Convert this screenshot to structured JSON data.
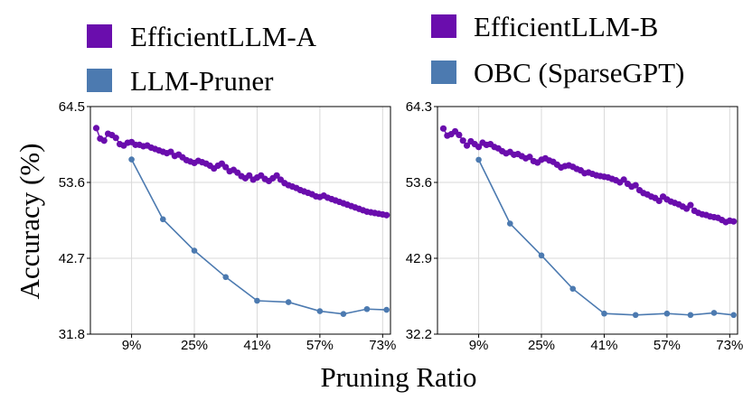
{
  "figure": {
    "ylabel": "Accuracy (%)",
    "xlabel": "Pruning Ratio"
  },
  "chart_data": [
    {
      "type": "line",
      "title": "",
      "legend": "top",
      "grid": true,
      "xticks": [
        "9%",
        "25%",
        "41%",
        "57%",
        "73%"
      ],
      "xtick_values": [
        9,
        25,
        41,
        57,
        73
      ],
      "xlim": [
        -1.5,
        75
      ],
      "ylim": [
        31.8,
        64.5
      ],
      "yticks": [
        "31.8",
        "42.7",
        "53.6",
        "64.5"
      ],
      "ytick_values": [
        31.8,
        42.7,
        53.6,
        64.5
      ],
      "series": [
        {
          "name": "EfficientLLM-A",
          "color": "#6a0dad",
          "x": [
            0,
            1,
            2,
            3,
            4,
            5,
            6,
            7,
            8,
            9,
            10,
            11,
            12,
            13,
            14,
            15,
            16,
            17,
            18,
            19,
            20,
            21,
            22,
            23,
            24,
            25,
            26,
            27,
            28,
            29,
            30,
            31,
            32,
            33,
            34,
            35,
            36,
            37,
            38,
            39,
            40,
            41,
            42,
            43,
            44,
            45,
            46,
            47,
            48,
            49,
            50,
            51,
            52,
            53,
            54,
            55,
            56,
            57,
            58,
            59,
            60,
            61,
            62,
            63,
            64,
            65,
            66,
            67,
            68,
            69,
            70,
            71,
            72,
            73,
            74
          ],
          "y": [
            61.4,
            59.9,
            59.6,
            60.6,
            60.4,
            60.0,
            59.1,
            58.9,
            59.3,
            59.4,
            59.0,
            59.0,
            58.8,
            58.9,
            58.6,
            58.4,
            58.2,
            58.0,
            57.8,
            58.0,
            57.4,
            57.6,
            57.2,
            56.8,
            56.6,
            56.4,
            56.7,
            56.5,
            56.3,
            56.0,
            55.6,
            56.0,
            56.3,
            55.8,
            55.2,
            55.4,
            55.0,
            54.5,
            54.2,
            54.6,
            54.0,
            54.3,
            54.6,
            54.1,
            53.8,
            54.2,
            54.6,
            54.0,
            53.5,
            53.2,
            53.0,
            52.8,
            52.5,
            52.3,
            52.1,
            51.9,
            51.6,
            51.5,
            51.7,
            51.4,
            51.2,
            51.0,
            50.8,
            50.6,
            50.4,
            50.2,
            50.0,
            49.8,
            49.6,
            49.4,
            49.3,
            49.2,
            49.1,
            49.0,
            48.9
          ]
        },
        {
          "name": "LLM-Pruner",
          "color": "#4c7ab0",
          "x": [
            9,
            17,
            25,
            33,
            41,
            49,
            57,
            63,
            69,
            74
          ],
          "y": [
            56.9,
            48.3,
            43.8,
            40.0,
            36.6,
            36.4,
            35.1,
            34.7,
            35.4,
            35.3
          ]
        }
      ]
    },
    {
      "type": "line",
      "title": "",
      "legend": "top",
      "grid": true,
      "xticks": [
        "9%",
        "25%",
        "41%",
        "57%",
        "73%"
      ],
      "xtick_values": [
        9,
        25,
        41,
        57,
        73
      ],
      "xlim": [
        -1.5,
        75
      ],
      "ylim": [
        32.2,
        64.3
      ],
      "yticks": [
        "32.2",
        "42.9",
        "53.6",
        "64.3"
      ],
      "ytick_values": [
        32.2,
        42.9,
        53.6,
        64.3
      ],
      "series": [
        {
          "name": "EfficientLLM-B",
          "color": "#6a0dad",
          "x": [
            0,
            1,
            2,
            3,
            4,
            5,
            6,
            7,
            8,
            9,
            10,
            11,
            12,
            13,
            14,
            15,
            16,
            17,
            18,
            19,
            20,
            21,
            22,
            23,
            24,
            25,
            26,
            27,
            28,
            29,
            30,
            31,
            32,
            33,
            34,
            35,
            36,
            37,
            38,
            39,
            40,
            41,
            42,
            43,
            44,
            45,
            46,
            47,
            48,
            49,
            50,
            51,
            52,
            53,
            54,
            55,
            56,
            57,
            58,
            59,
            60,
            61,
            62,
            63,
            64,
            65,
            66,
            67,
            68,
            69,
            70,
            71,
            72,
            73,
            74
          ],
          "y": [
            61.2,
            60.2,
            60.4,
            60.8,
            60.3,
            59.5,
            58.8,
            59.4,
            59.0,
            58.6,
            59.2,
            58.9,
            59.0,
            58.6,
            58.4,
            58.0,
            57.7,
            57.9,
            57.5,
            57.6,
            57.3,
            57.0,
            57.2,
            56.6,
            56.4,
            56.8,
            57.0,
            56.7,
            56.5,
            56.1,
            55.7,
            55.9,
            56.0,
            55.8,
            55.5,
            55.3,
            54.9,
            55.0,
            54.8,
            54.6,
            54.5,
            54.4,
            54.3,
            54.1,
            53.9,
            53.6,
            54.0,
            53.4,
            53.0,
            53.2,
            52.5,
            52.1,
            51.9,
            51.6,
            51.4,
            51.0,
            51.6,
            51.2,
            50.9,
            50.7,
            50.5,
            50.2,
            49.9,
            50.4,
            49.6,
            49.3,
            49.1,
            49.0,
            48.8,
            48.7,
            48.6,
            48.3,
            48.0,
            48.2,
            48.1
          ]
        },
        {
          "name": "OBC (SparseGPT)",
          "color": "#4c7ab0",
          "x": [
            9,
            17,
            25,
            33,
            41,
            49,
            57,
            63,
            69,
            74
          ],
          "y": [
            56.8,
            47.8,
            43.3,
            38.6,
            35.1,
            34.9,
            35.1,
            34.9,
            35.2,
            34.9
          ]
        }
      ]
    }
  ]
}
